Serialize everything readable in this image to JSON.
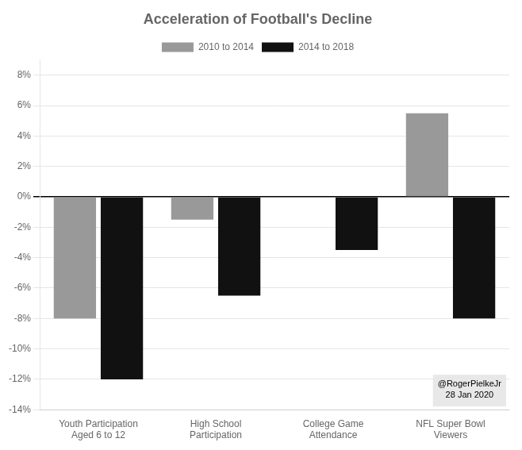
{
  "chart_data": {
    "type": "bar",
    "title": "Acceleration of Football's Decline",
    "categories": [
      "Youth Participation\nAged 6 to 12",
      "High School\nParticipation",
      "College Game\nAttendance",
      "NFL Super Bowl\nViewers"
    ],
    "series": [
      {
        "name": "2010 to 2014",
        "color": "#999999",
        "values": [
          -8.0,
          -1.5,
          0.0,
          5.5
        ]
      },
      {
        "name": "2014 to 2018",
        "color": "#111111",
        "values": [
          -12.0,
          -6.5,
          -3.5,
          -8.0
        ]
      }
    ],
    "ylim": [
      -14,
      9
    ],
    "yticks": [
      {
        "value": -14,
        "label": "-14%"
      },
      {
        "value": -12,
        "label": "-12%"
      },
      {
        "value": -10,
        "label": "-10%"
      },
      {
        "value": -8,
        "label": "-8%"
      },
      {
        "value": -6,
        "label": "-6%"
      },
      {
        "value": -4,
        "label": "-4%"
      },
      {
        "value": -2,
        "label": "-2%"
      },
      {
        "value": 0,
        "label": "0%"
      },
      {
        "value": 2,
        "label": "2%"
      },
      {
        "value": 4,
        "label": "4%"
      },
      {
        "value": 6,
        "label": "6%"
      },
      {
        "value": 8,
        "label": "8%"
      }
    ],
    "annotation": "@RogerPielkeJr\n28 Jan 2020",
    "grid": true,
    "legend": "top"
  }
}
